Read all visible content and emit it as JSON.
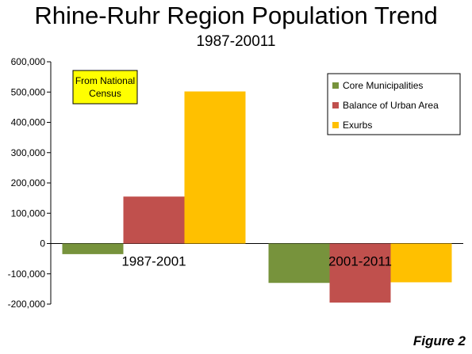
{
  "title": "Rhine-Ruhr Region Population Trend",
  "subtitle": "1987-20011",
  "figure_label": "Figure 2",
  "annotation": {
    "lines": [
      "From National",
      "Census"
    ],
    "fill": "#ffff00"
  },
  "chart_data": {
    "type": "bar",
    "categories": [
      "1987-2001",
      "2001-2011"
    ],
    "series": [
      {
        "name": "Core Municipalities",
        "color": "#77933c",
        "values": [
          -35000,
          -130000
        ]
      },
      {
        "name": "Balance of Urban Area",
        "color": "#c0504d",
        "values": [
          155000,
          -195000
        ]
      },
      {
        "name": "Exurbs",
        "color": "#ffc000",
        "values": [
          502000,
          -128000
        ]
      }
    ],
    "ylim": [
      -200000,
      600000
    ],
    "yticks": [
      600000,
      500000,
      400000,
      300000,
      200000,
      100000,
      0,
      -100000,
      -200000
    ],
    "ytick_labels": [
      "600,000",
      "500,000",
      "400,000",
      "300,000",
      "200,000",
      "100,000",
      "0",
      "-100,000",
      "-200,000"
    ],
    "legend_position": "top-right",
    "grid": false
  }
}
